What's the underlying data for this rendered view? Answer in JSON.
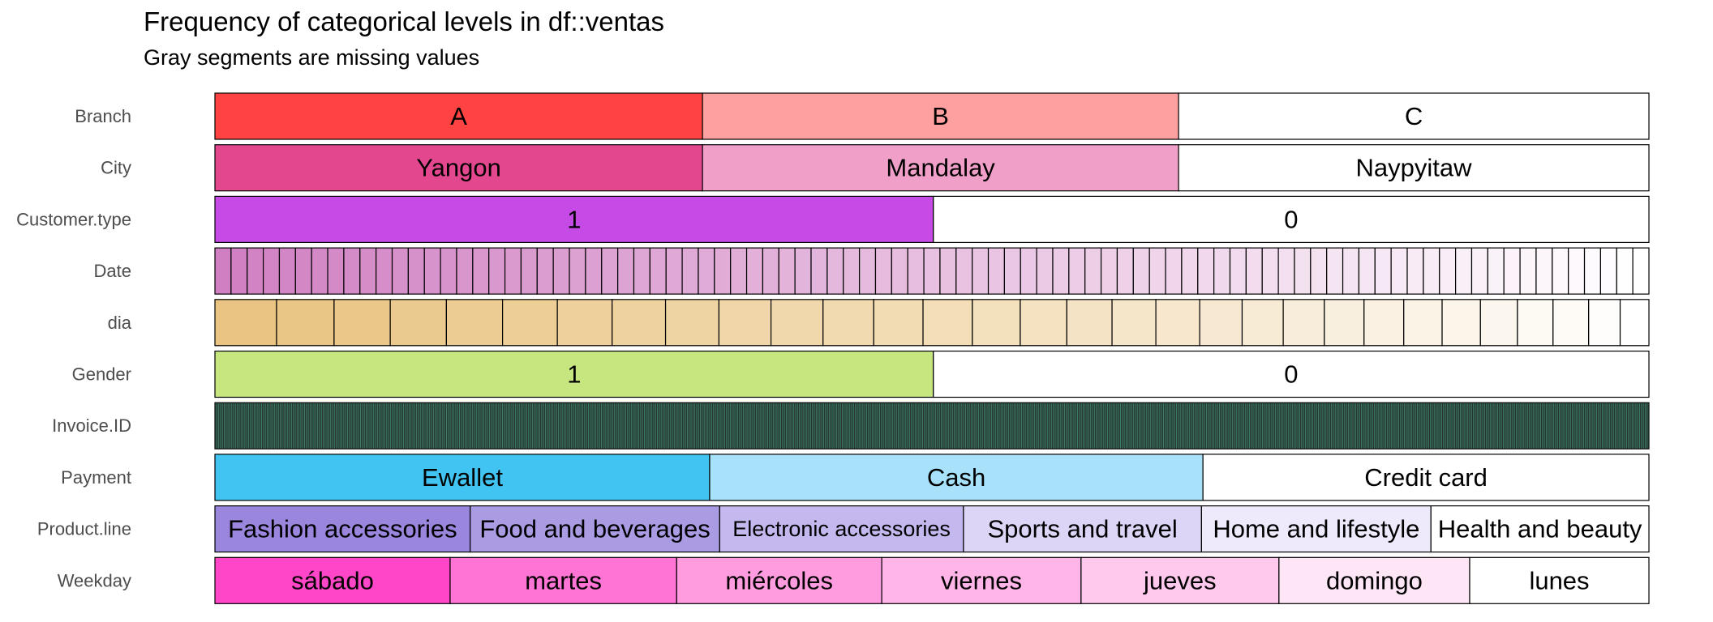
{
  "title": "Frequency of categorical levels in df::ventas",
  "subtitle": "Gray segments are missing values",
  "chart_data": {
    "type": "bar",
    "orientation": "horizontal",
    "stacked": true,
    "normalized": true,
    "rows": [
      {
        "name": "Branch",
        "levels": [
          {
            "label": "A",
            "share": 0.34,
            "color": "#ff4242"
          },
          {
            "label": "B",
            "share": 0.332,
            "color": "#ffa0a0"
          },
          {
            "label": "C",
            "share": 0.328,
            "color": "#ffffff"
          }
        ]
      },
      {
        "name": "City",
        "levels": [
          {
            "label": "Yangon",
            "share": 0.34,
            "color": "#e3488f"
          },
          {
            "label": "Mandalay",
            "share": 0.332,
            "color": "#f0a0c8"
          },
          {
            "label": "Naypyitaw",
            "share": 0.328,
            "color": "#ffffff"
          }
        ]
      },
      {
        "name": "Customer.type",
        "levels": [
          {
            "label": "1",
            "share": 0.501,
            "color": "#c64ae6"
          },
          {
            "label": "0",
            "share": 0.499,
            "color": "#ffffff"
          }
        ]
      },
      {
        "name": "Date",
        "count": 89,
        "gradient": [
          "#d080c2",
          "#ffffff"
        ]
      },
      {
        "name": "dia",
        "gradient": [
          "#e9c482",
          "#ffffff"
        ],
        "segments": [
          0.045,
          0.042,
          0.041,
          0.041,
          0.041,
          0.04,
          0.04,
          0.039,
          0.039,
          0.038,
          0.038,
          0.037,
          0.036,
          0.036,
          0.035,
          0.034,
          0.033,
          0.032,
          0.032,
          0.031,
          0.03,
          0.03,
          0.029,
          0.029,
          0.028,
          0.028,
          0.027,
          0.026,
          0.026,
          0.023,
          0.021
        ]
      },
      {
        "name": "Gender",
        "levels": [
          {
            "label": "1",
            "share": 0.501,
            "color": "#c7e680"
          },
          {
            "label": "0",
            "share": 0.499,
            "color": "#ffffff"
          }
        ]
      },
      {
        "name": "Invoice.ID",
        "count": 1000,
        "fill": "#3e7a66"
      },
      {
        "name": "Payment",
        "levels": [
          {
            "label": "Ewallet",
            "share": 0.345,
            "color": "#42c4f2"
          },
          {
            "label": "Cash",
            "share": 0.344,
            "color": "#a8e2fa"
          },
          {
            "label": "Credit card",
            "share": 0.311,
            "color": "#ffffff"
          }
        ]
      },
      {
        "name": "Product.line",
        "levels": [
          {
            "label": "Fashion accessories",
            "share": 0.178,
            "color": "#9a86dc"
          },
          {
            "label": "Food and beverages",
            "share": 0.174,
            "color": "#ab9be3"
          },
          {
            "label": "Electronic accessories",
            "share": 0.17,
            "color": "#c5b8ee"
          },
          {
            "label": "Sports and travel",
            "share": 0.166,
            "color": "#ddd5f6"
          },
          {
            "label": "Home and lifestyle",
            "share": 0.16,
            "color": "#eeeafb"
          },
          {
            "label": "Health and beauty",
            "share": 0.152,
            "color": "#ffffff"
          }
        ],
        "small_labels": [
          "Electronic accessories"
        ]
      },
      {
        "name": "Weekday",
        "levels": [
          {
            "label": "sábado",
            "share": 0.164,
            "color": "#ff46c8"
          },
          {
            "label": "martes",
            "share": 0.158,
            "color": "#ff74d4"
          },
          {
            "label": "miércoles",
            "share": 0.143,
            "color": "#ff9cdf"
          },
          {
            "label": "viernes",
            "share": 0.139,
            "color": "#ffb5e7"
          },
          {
            "label": "jueves",
            "share": 0.138,
            "color": "#ffc9ee"
          },
          {
            "label": "domingo",
            "share": 0.133,
            "color": "#ffe6f7"
          },
          {
            "label": "lunes",
            "share": 0.125,
            "color": "#ffffff"
          }
        ]
      }
    ]
  }
}
